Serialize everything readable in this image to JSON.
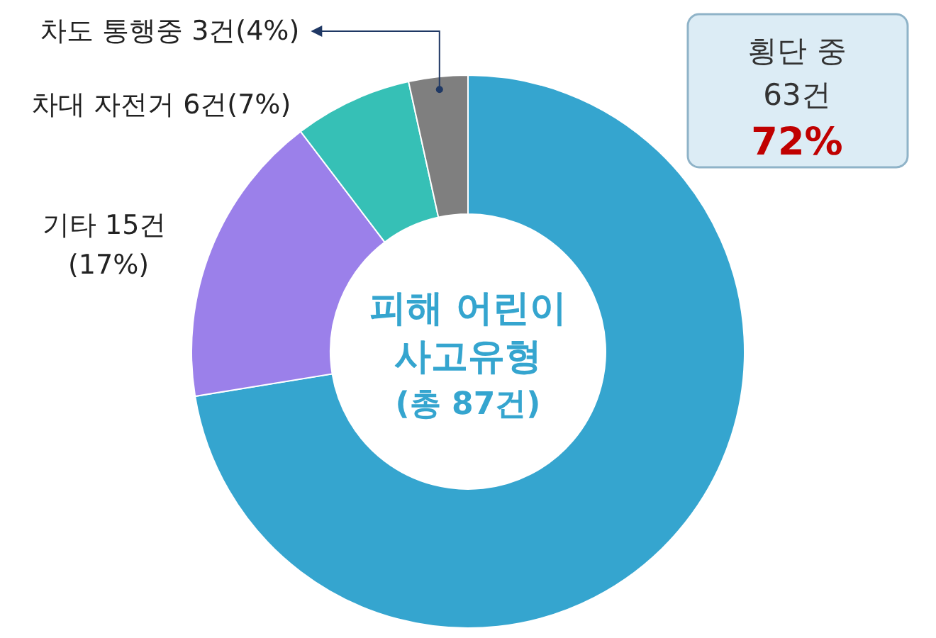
{
  "chart_data": {
    "type": "donut",
    "title": "피해 어린이\n사고유형\n(총 87건)",
    "categories": [
      "횡단 중",
      "기타",
      "차대 자전거",
      "차도 통행중"
    ],
    "values": [
      63,
      15,
      6,
      3
    ],
    "value_labels": [
      "63건\n72%",
      "15건\n(17%)",
      "6건(7%)",
      "3건(4%)"
    ],
    "colors": [
      "#35a5cf",
      "#9b80ea",
      "#36c0b6",
      "#7f7f7f"
    ]
  }
}
